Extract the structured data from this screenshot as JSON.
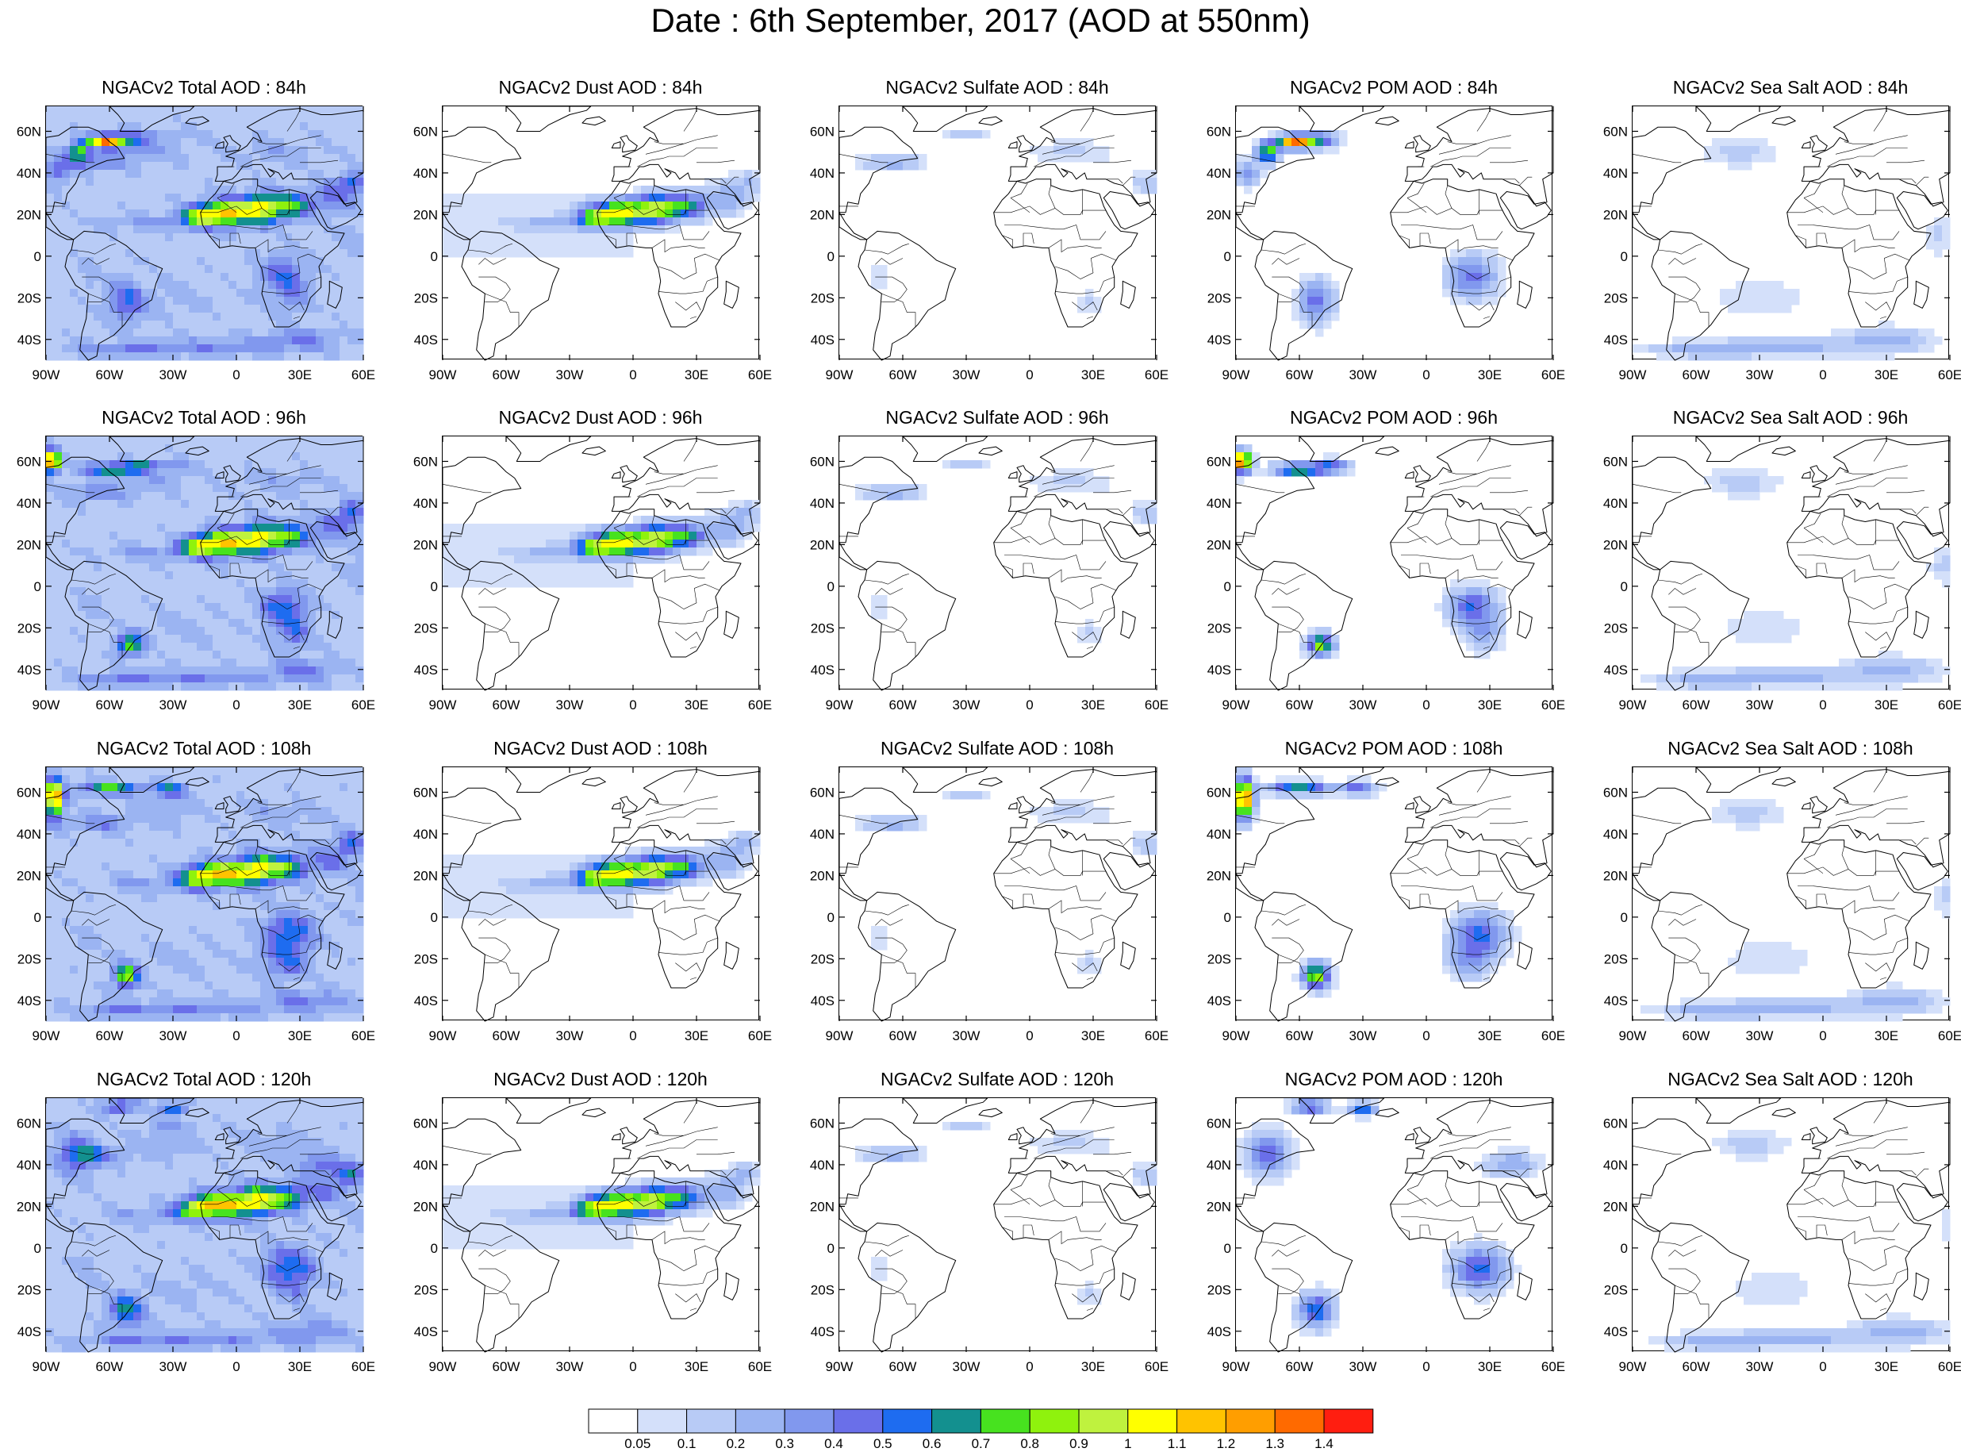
{
  "title": "Date : 6th September, 2017 (AOD at 550nm)",
  "lat_ticks": [
    "60N",
    "40N",
    "20N",
    "0",
    "20S",
    "40S"
  ],
  "lon_ticks": [
    "90W",
    "60W",
    "30W",
    "0",
    "30E",
    "60E"
  ],
  "panel_titles": [
    [
      "NGACv2 Total AOD : 84h",
      "NGACv2 Dust AOD : 84h",
      "NGACv2 Sulfate AOD : 84h",
      "NGACv2 POM AOD : 84h",
      "NGACv2 Sea Salt AOD : 84h"
    ],
    [
      "NGACv2 Total AOD : 96h",
      "NGACv2 Dust AOD : 96h",
      "NGACv2 Sulfate AOD : 96h",
      "NGACv2 POM AOD : 96h",
      "NGACv2 Sea Salt AOD : 96h"
    ],
    [
      "NGACv2 Total AOD : 108h",
      "NGACv2 Dust AOD : 108h",
      "NGACv2 Sulfate AOD : 108h",
      "NGACv2 POM AOD : 108h",
      "NGACv2 Sea Salt AOD : 108h"
    ],
    [
      "NGACv2 Total AOD : 120h",
      "NGACv2 Dust AOD : 120h",
      "NGACv2 Sulfate AOD : 120h",
      "NGACv2 POM AOD : 120h",
      "NGACv2 Sea Salt  AOD : 120h"
    ]
  ],
  "colorbar": {
    "labels": [
      "0.05",
      "0.1",
      "0.2",
      "0.3",
      "0.4",
      "0.5",
      "0.6",
      "0.7",
      "0.8",
      "0.9",
      "1",
      "1.1",
      "1.2",
      "1.3",
      "1.4"
    ],
    "colors": [
      "#ffffff",
      "#d4e0fa",
      "#b8cbf6",
      "#9bb4f2",
      "#8198ee",
      "#6a6fe9",
      "#1e6cf0",
      "#13908f",
      "#47e21f",
      "#8ff20d",
      "#bff23e",
      "#ffff00",
      "#ffc300",
      "#ff9e00",
      "#ff6a00",
      "#ff1e10"
    ]
  }
}
